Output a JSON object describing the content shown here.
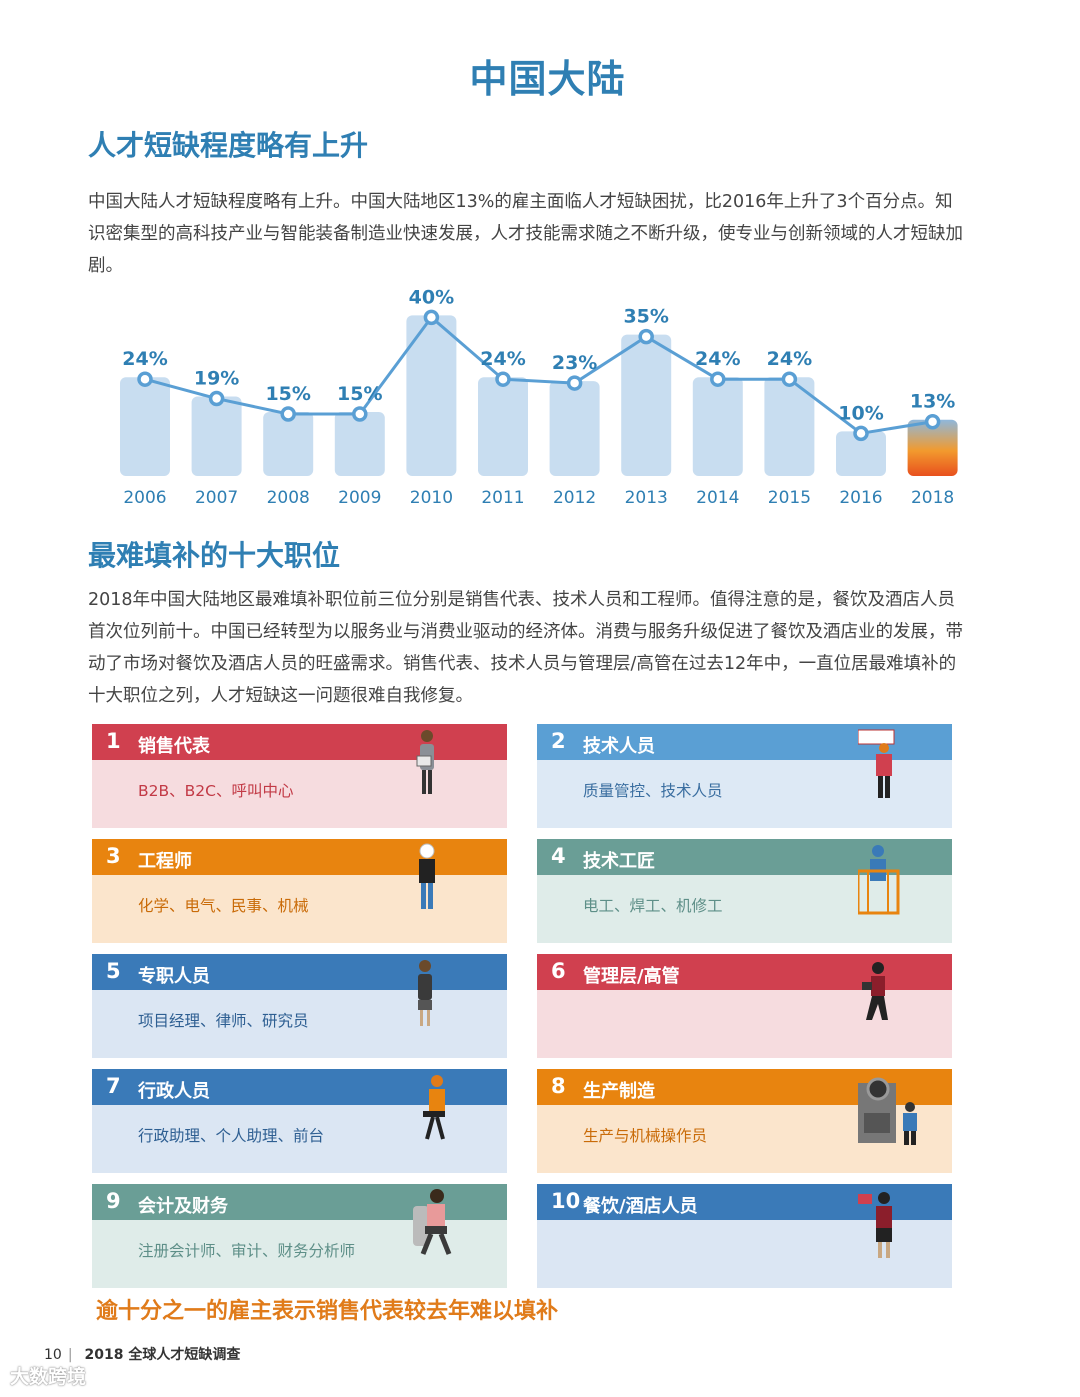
{
  "page_title": "中国大陆",
  "section1": {
    "title": "人才短缺程度略有上升",
    "paragraph": "中国大陆人才短缺程度略有上升。中国大陆地区13%的雇主面临人才短缺困扰，比2016年上升了3个百分点。知识密集型的高科技产业与智能装备制造业快速发展，人才技能需求随之不断升级，使专业与创新领域的人才短缺加剧。"
  },
  "chart_data": {
    "type": "bar",
    "categories": [
      "2006",
      "2007",
      "2008",
      "2009",
      "2010",
      "2011",
      "2012",
      "2013",
      "2014",
      "2015",
      "2016",
      "2018"
    ],
    "values": [
      24,
      19,
      15,
      15,
      40,
      24,
      23,
      35,
      24,
      24,
      10,
      13
    ],
    "data_labels": [
      "24%",
      "19%",
      "15%",
      "15%",
      "40%",
      "24%",
      "23%",
      "35%",
      "24%",
      "24%",
      "10%",
      "13%"
    ],
    "ylim": [
      0,
      45
    ],
    "grid": false,
    "overlay_line": true,
    "colors": {
      "bar": "#c8ddf0",
      "line": "#5a9fd4",
      "label": "#2f7fb3",
      "tick": "#2f7fb3"
    },
    "highlight_last_gradient": [
      "#e8501e",
      "#f29a2e",
      "#8fb8dc"
    ]
  },
  "section2": {
    "title": "最难填补的十大职位",
    "paragraph": "2018年中国大陆地区最难填补职位前三位分别是销售代表、技术人员和工程师。值得注意的是，餐饮及酒店人员首次位列前十。中国已经转型为以服务业与消费业驱动的经济体。消费与服务升级促进了餐饮及酒店业的发展，带动了市场对餐饮及酒店人员的旺盛需求。销售代表、技术人员与管理层/高管在过去12年中，一直位居最难填补的十大职位之列，人才短缺这一问题很难自我修复。"
  },
  "jobs": [
    {
      "rank": "1",
      "title": "销售代表",
      "sub": "B2B、B2C、呼叫中心",
      "bar_color": "#d0404f",
      "body_color": "#f6dcdf",
      "sub_color": "#c23a46",
      "icon": "saleswoman-figure-icon"
    },
    {
      "rank": "2",
      "title": "技术人员",
      "sub": "质量管控、技术人员",
      "bar_color": "#5a9fd4",
      "body_color": "#dde9f5",
      "sub_color": "#3a6ea0",
      "icon": "technician-figure-icon"
    },
    {
      "rank": "3",
      "title": "工程师",
      "sub": "化学、电气、民事、机械",
      "bar_color": "#e8840f",
      "body_color": "#fbe5cc",
      "sub_color": "#c96b08",
      "icon": "engineer-figure-icon"
    },
    {
      "rank": "4",
      "title": "技术工匠",
      "sub": "电工、焊工、机修工",
      "bar_color": "#6a9e96",
      "body_color": "#dfece9",
      "sub_color": "#5e8f88",
      "icon": "tradesman-figure-icon"
    },
    {
      "rank": "5",
      "title": "专职人员",
      "sub": "项目经理、律师、研究员",
      "bar_color": "#3a7ab8",
      "body_color": "#dbe6f3",
      "sub_color": "#2e5f92",
      "icon": "professional-figure-icon"
    },
    {
      "rank": "6",
      "title": "管理层/高管",
      "sub": "",
      "bar_color": "#d0404f",
      "body_color": "#f6dcdf",
      "sub_color": "#c23a46",
      "icon": "executive-figure-icon"
    },
    {
      "rank": "7",
      "title": "行政人员",
      "sub": "行政助理、个人助理、前台",
      "bar_color": "#3a7ab8",
      "body_color": "#dbe6f3",
      "sub_color": "#2e5f92",
      "icon": "office-support-figure-icon"
    },
    {
      "rank": "8",
      "title": "生产制造",
      "sub": "生产与机械操作员",
      "bar_color": "#e8840f",
      "body_color": "#fbe5cc",
      "sub_color": "#c96b08",
      "icon": "machine-operator-figure-icon"
    },
    {
      "rank": "9",
      "title": "会计及财务",
      "sub": "注册会计师、审计、财务分析师",
      "bar_color": "#6a9e96",
      "body_color": "#dfece9",
      "sub_color": "#5e8f88",
      "icon": "accountant-figure-icon"
    },
    {
      "rank": "10",
      "title": "餐饮/酒店人员",
      "sub": "",
      "bar_color": "#3a7ab8",
      "body_color": "#dbe6f3",
      "sub_color": "#2e5f92",
      "icon": "hotel-staff-figure-icon"
    }
  ],
  "tagline": "逾十分之一的雇主表示销售代表较去年难以填补",
  "footer": {
    "page_number": "10",
    "separator": "|",
    "report_title": "2018 全球人才短缺调查"
  },
  "watermark": "大数跨境"
}
